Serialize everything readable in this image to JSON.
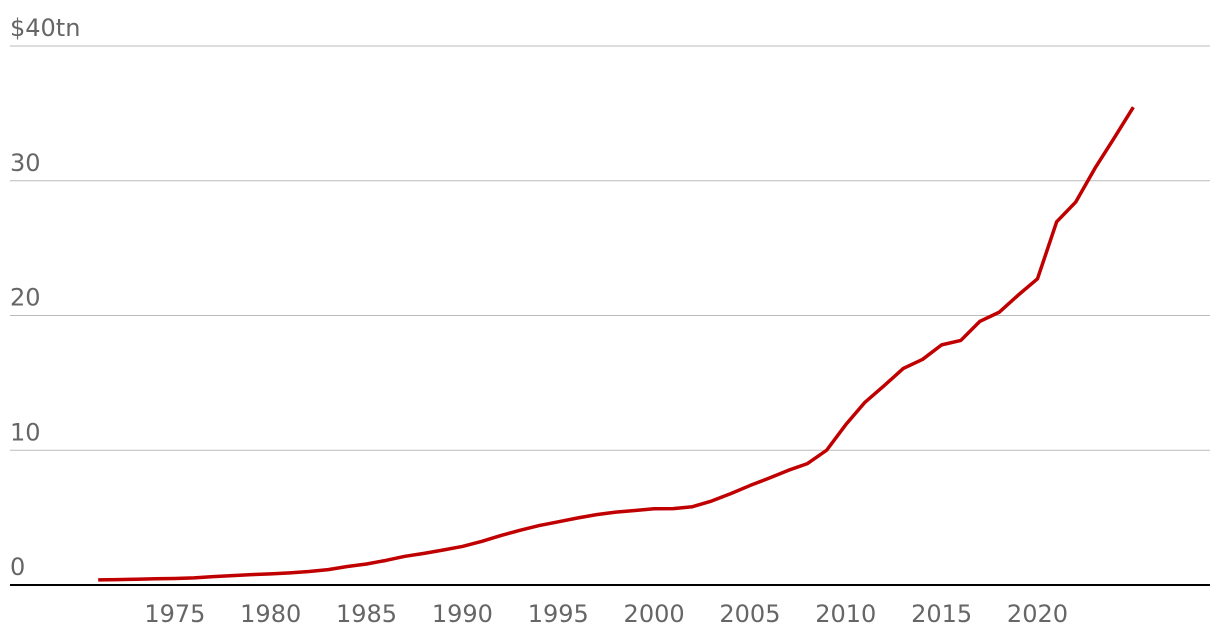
{
  "chart_data": {
    "type": "line",
    "x": [
      1971,
      1972,
      1973,
      1974,
      1975,
      1976,
      1977,
      1978,
      1979,
      1980,
      1981,
      1982,
      1983,
      1984,
      1985,
      1986,
      1987,
      1988,
      1989,
      1990,
      1991,
      1992,
      1993,
      1994,
      1995,
      1996,
      1997,
      1998,
      1999,
      2000,
      2001,
      2002,
      2003,
      2004,
      2005,
      2006,
      2007,
      2008,
      2009,
      2010,
      2011,
      2012,
      2013,
      2014,
      2015,
      2016,
      2017,
      2018,
      2019,
      2020,
      2021,
      2022,
      2023,
      2024,
      2025
    ],
    "series": [
      {
        "color": "#c00000",
        "values": [
          0.38,
          0.4,
          0.43,
          0.46,
          0.48,
          0.53,
          0.62,
          0.7,
          0.77,
          0.83,
          0.9,
          1.0,
          1.14,
          1.37,
          1.56,
          1.82,
          2.13,
          2.35,
          2.6,
          2.86,
          3.23,
          3.67,
          4.06,
          4.41,
          4.69,
          4.97,
          5.22,
          5.41,
          5.53,
          5.66,
          5.67,
          5.81,
          6.23,
          6.78,
          7.38,
          7.93,
          8.51,
          9.01,
          10.0,
          11.9,
          13.56,
          14.79,
          16.07,
          16.74,
          17.82,
          18.15,
          19.57,
          20.24,
          21.52,
          22.72,
          26.95,
          28.43,
          30.93,
          33.17,
          35.46
        ]
      }
    ],
    "xlim": [
      1966.4,
      2029.0
    ],
    "xticks": [
      1975,
      1980,
      1985,
      1990,
      1995,
      2000,
      2005,
      2010,
      2015,
      2020
    ],
    "ylim": [
      0,
      40
    ],
    "yticks": [
      0,
      10,
      20,
      30,
      {
        "value": 40,
        "label": "$40tn"
      }
    ],
    "grid": true
  }
}
